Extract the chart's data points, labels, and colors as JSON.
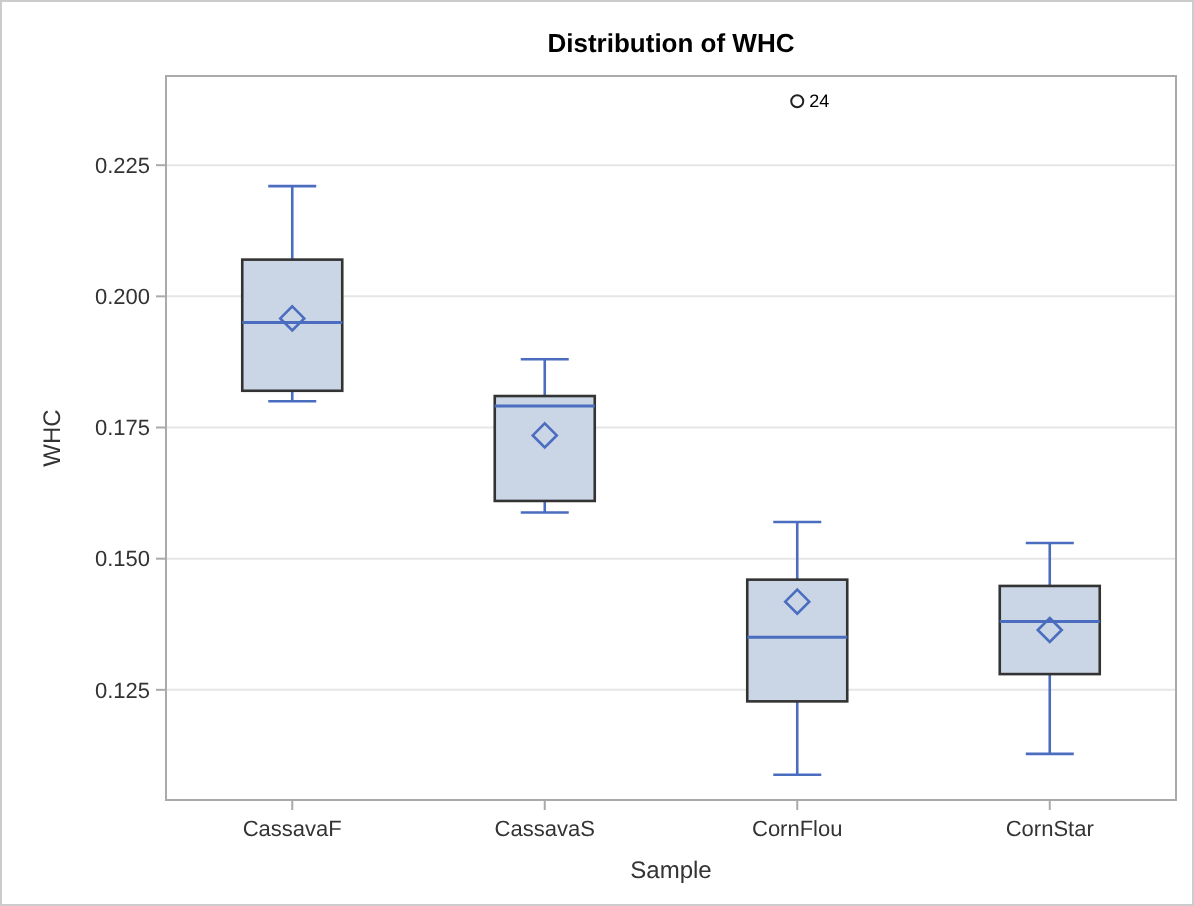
{
  "chart_data": {
    "type": "box",
    "title": "Distribution of WHC",
    "xlabel": "Sample",
    "ylabel": "WHC",
    "categories": [
      "CassavaF",
      "CassavaS",
      "CornFlou",
      "CornStar"
    ],
    "boxes": [
      {
        "low": 0.18,
        "q1": 0.182,
        "median": 0.195,
        "q3": 0.207,
        "high": 0.221,
        "mean": 0.1958
      },
      {
        "low": 0.1588,
        "q1": 0.161,
        "median": 0.1791,
        "q3": 0.181,
        "high": 0.188,
        "mean": 0.1735
      },
      {
        "low": 0.1088,
        "q1": 0.1228,
        "median": 0.135,
        "q3": 0.146,
        "high": 0.157,
        "mean": 0.1418,
        "outliers": [
          0.2372
        ]
      },
      {
        "low": 0.1128,
        "q1": 0.128,
        "median": 0.138,
        "q3": 0.1448,
        "high": 0.153,
        "mean": 0.1364
      }
    ],
    "color": "#cad5e5",
    "annotations": [
      "24"
    ],
    "ylim": [
      0.104,
      0.242
    ],
    "yticks": [
      {
        "value": 0.125,
        "label": "0.125"
      },
      {
        "value": 0.15,
        "label": "0.150"
      },
      {
        "value": 0.175,
        "label": "0.175"
      },
      {
        "value": 0.2,
        "label": "0.200"
      },
      {
        "value": 0.225,
        "label": "0.225"
      }
    ],
    "grid": "y",
    "marker": "diamond"
  }
}
